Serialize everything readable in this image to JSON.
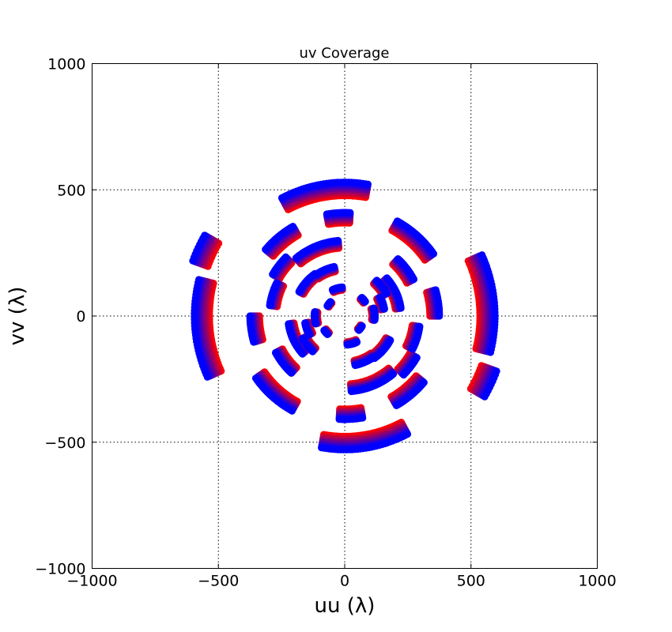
{
  "chart_data": {
    "type": "scatter",
    "title": "uv Coverage",
    "xlabel": "uu (λ)",
    "ylabel": "vv (λ)",
    "xlim": [
      -1000,
      1000
    ],
    "ylim": [
      -1000,
      1000
    ],
    "xticks": [
      -1000,
      -500,
      0,
      500,
      1000
    ],
    "yticks": [
      -1000,
      -500,
      0,
      500,
      1000
    ],
    "xtick_labels": [
      "−1000",
      "−500",
      "0",
      "500",
      "1000"
    ],
    "ytick_labels": [
      "−1000",
      "−500",
      "0",
      "500",
      "1000"
    ],
    "grid": true,
    "legend": "none",
    "colors": {
      "low_frequency": "#ff0000",
      "high_frequency": "#0000ff"
    },
    "frequency_scale": {
      "min": 0.9,
      "max": 1.0,
      "steps": 8
    },
    "tracks": [
      {
        "radius": 530,
        "start_deg": 80,
        "end_deg": 118
      },
      {
        "radius": 595,
        "start_deg": 24,
        "end_deg": -14
      },
      {
        "radius": 640,
        "start_deg": 150,
        "end_deg": 160
      },
      {
        "radius": 310,
        "start_deg": 28,
        "end_deg": 47
      },
      {
        "radius": 300,
        "start_deg": 95,
        "end_deg": 130
      },
      {
        "radius": 200,
        "start_deg": 102,
        "end_deg": 125
      },
      {
        "radius": 410,
        "start_deg": 87,
        "end_deg": 100
      },
      {
        "radius": 410,
        "start_deg": 120,
        "end_deg": 140
      },
      {
        "radius": 430,
        "start_deg": 35,
        "end_deg": 61
      },
      {
        "radius": 190,
        "start_deg": 28,
        "end_deg": 48
      },
      {
        "radius": 100,
        "start_deg": 35,
        "end_deg": 47
      },
      {
        "radius": 225,
        "start_deg": 8,
        "end_deg": 42
      },
      {
        "radius": 375,
        "start_deg": 0,
        "end_deg": 16
      },
      {
        "radius": 300,
        "start_deg": 154,
        "end_deg": 172
      },
      {
        "radius": 205,
        "start_deg": 125,
        "end_deg": 152
      },
      {
        "radius": 330,
        "start_deg": 135,
        "end_deg": 150
      },
      {
        "radius": 115,
        "start_deg": 95,
        "end_deg": 115
      },
      {
        "radius": 160,
        "start_deg": 10,
        "end_deg": 28
      },
      {
        "radius": 80,
        "start_deg": 135,
        "end_deg": 150
      },
      {
        "radius": 120,
        "start_deg": 172,
        "end_deg": 195
      }
    ]
  }
}
